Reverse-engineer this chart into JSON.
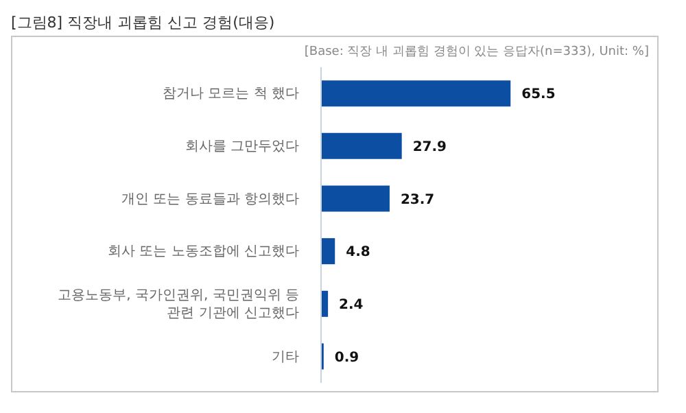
{
  "chart_data": {
    "type": "bar",
    "orientation": "horizontal",
    "title": "[그림8] 직장내 괴롭힘 신고 경험(대응)",
    "subtitle": "[Base: 직장 내 괴롭힘 경험이 있는 응답자(n=333), Unit: %]",
    "categories": [
      "참거나 모르는 척 했다",
      "회사를 그만두었다",
      "개인 또는 동료들과 항의했다",
      "회사 또는 노동조합에 신고했다",
      "고용노동부, 국가인권위, 국민권익위 등 관련 기관에 신고했다",
      "기타"
    ],
    "values": [
      65.5,
      27.9,
      23.7,
      4.8,
      2.4,
      0.9
    ],
    "color": "#0b4ea2",
    "data_labels": true
  }
}
